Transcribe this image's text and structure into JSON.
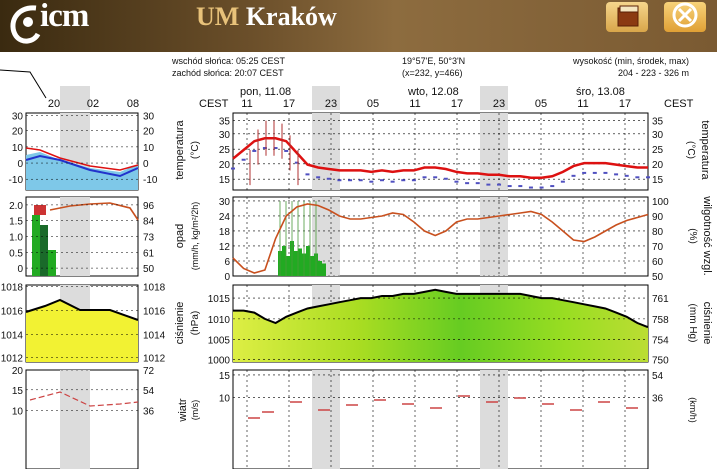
{
  "header": {
    "logo_text": "icm",
    "title_prefix": "UM",
    "title_city": "Kraków",
    "brand_color": "#e8c27a"
  },
  "info": {
    "sunrise": "wschód słońca: 05:25 CEST",
    "sunset": "zachód słońca: 20:07 CEST",
    "coords": "19°57'E, 50°3'N",
    "grid": "(x=232, y=466)",
    "elev_label": "wysokość (min, środek, max)",
    "elev_values": "204 - 223 - 326 m"
  },
  "left_panel": {
    "hours": [
      "20",
      "02",
      "08"
    ],
    "temp_ticks": [
      "30",
      "20",
      "10",
      "0",
      "-10"
    ],
    "precip_left_ticks": [
      "2.0",
      "1.5",
      "1.0",
      "0.5",
      "0"
    ],
    "precip_right_ticks": [
      "96",
      "84",
      "73",
      "61",
      "50"
    ],
    "press_left_ticks": [
      "1018",
      "1016",
      "1014",
      "1012"
    ],
    "press_right_ticks": [
      "1018",
      "1016",
      "1014",
      "1012"
    ],
    "wind_left_ticks": [
      "20",
      "15",
      "10"
    ],
    "wind_right_ticks": [
      "72",
      "54",
      "36"
    ]
  },
  "main": {
    "timezone": "CEST",
    "days": [
      "pon, 11.08",
      "wto, 12.08",
      "śro, 13.08"
    ],
    "hours": [
      "11",
      "17",
      "23",
      "05",
      "11",
      "17",
      "23",
      "05",
      "11",
      "17"
    ],
    "temperature": {
      "label": "temperatura",
      "unit": "(°C)",
      "ticks_left": [
        "35",
        "30",
        "25",
        "20",
        "15"
      ],
      "ticks_right": [
        "35",
        "30",
        "25",
        "20",
        "15"
      ],
      "series": [
        22,
        25,
        28,
        29,
        29,
        28,
        24,
        20,
        19,
        18.5,
        18,
        18,
        18,
        17.5,
        18,
        17.5,
        18,
        18,
        19,
        19,
        18.5,
        17.5,
        17,
        17,
        16.5,
        16.5,
        16,
        16,
        15.5,
        15.5,
        16,
        17.5,
        19.5,
        20.5,
        20.5,
        20.5,
        20,
        19.5,
        19,
        19
      ],
      "line_color": "#dd1111"
    },
    "precipitation": {
      "label": "opad",
      "unit": "(mm/h, kg/m²/2h)",
      "ticks_left": [
        "30",
        "24",
        "18",
        "12",
        "6",
        "0"
      ],
      "humidity_label": "wilgotność wzgl.",
      "humidity_unit": "(%)",
      "ticks_right": [
        "100",
        "90",
        "80",
        "70",
        "60",
        "50"
      ],
      "humidity_series": [
        62,
        55,
        52,
        54,
        75,
        90,
        96,
        98,
        97,
        94,
        90,
        88,
        88,
        89,
        90,
        92,
        91,
        86,
        80,
        77,
        80,
        86,
        88,
        88,
        89,
        90,
        91,
        92,
        93,
        91,
        86,
        80,
        74,
        73,
        76,
        80,
        84,
        87,
        89,
        91
      ],
      "line_color": "#c8501e"
    },
    "pressure": {
      "label": "ciśnienie",
      "unit": "(hPa)",
      "ticks_left": [
        "1015",
        "1010",
        "1005",
        "1000"
      ],
      "unit_right": "(mm Hg)",
      "ticks_right": [
        "761",
        "758",
        "754",
        "750"
      ],
      "series": [
        1012,
        1012,
        1011.5,
        1010,
        1009,
        1010.5,
        1011.5,
        1012.5,
        1013,
        1013.5,
        1014,
        1014.5,
        1015,
        1015,
        1015.5,
        1015.5,
        1016,
        1016,
        1016.5,
        1017,
        1016.5,
        1016,
        1016,
        1016,
        1016,
        1016,
        1016,
        1016,
        1015.5,
        1015,
        1015,
        1014.5,
        1014,
        1013.5,
        1013,
        1012.5,
        1011.5,
        1010.5,
        1009,
        1008
      ]
    },
    "wind": {
      "label": "wiatr",
      "unit": "(m/s)",
      "ticks_left": [
        "15",
        "10"
      ],
      "unit_right": "(km/h)",
      "ticks_right": [
        "54",
        "36"
      ]
    }
  }
}
